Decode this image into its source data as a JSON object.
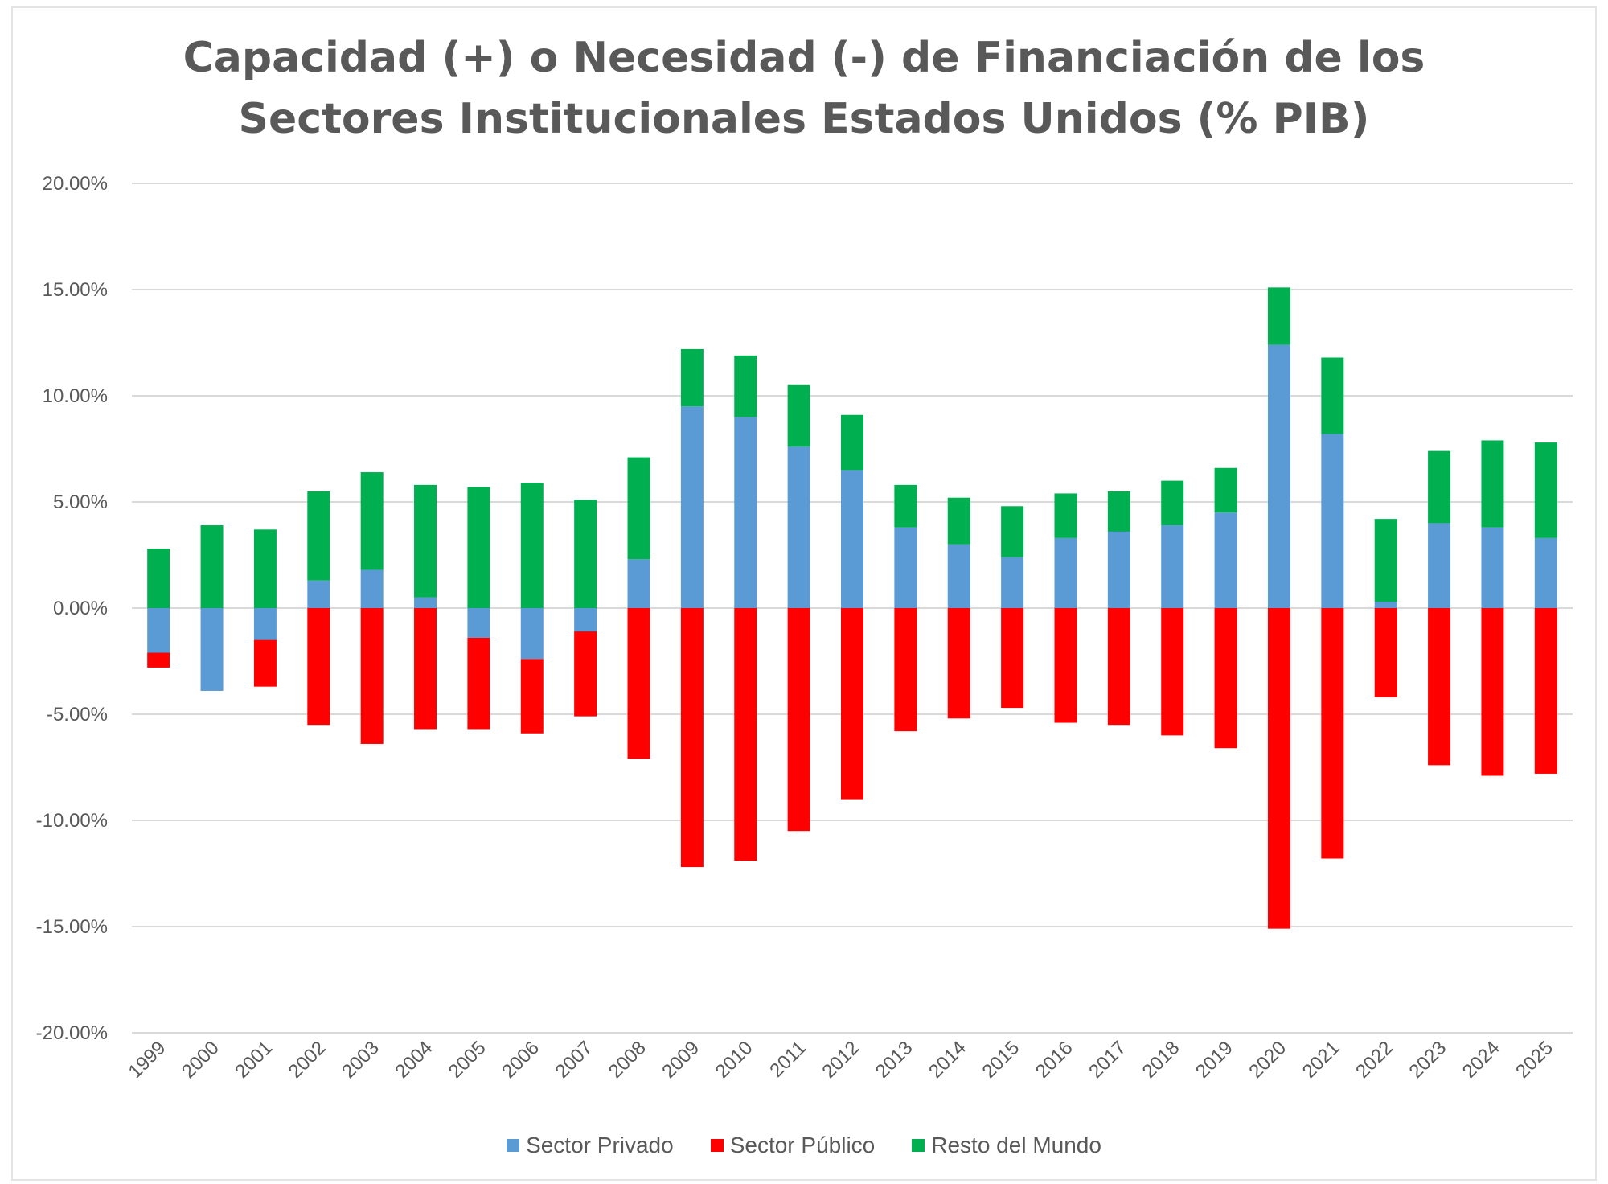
{
  "chart_data": {
    "type": "bar",
    "stacked": true,
    "title_lines": [
      "Capacidad (+) o Necesidad (-) de Financiación de los",
      "Sectores Institucionales Estados Unidos (% PIB)"
    ],
    "xlabel": "",
    "ylabel": "",
    "ylim": [
      -20,
      20
    ],
    "y_ticks": [
      20,
      15,
      10,
      5,
      0,
      -5,
      -10,
      -15,
      -20
    ],
    "y_tick_labels": [
      "20.00%",
      "15.00%",
      "10.00%",
      "5.00%",
      "0.00%",
      "-5.00%",
      "-10.00%",
      "-15.00%",
      "-20.00%"
    ],
    "grid": true,
    "legend_position": "bottom",
    "categories": [
      "1999",
      "2000",
      "2001",
      "2002",
      "2003",
      "2004",
      "2005",
      "2006",
      "2007",
      "2008",
      "2009",
      "2010",
      "2011",
      "2012",
      "2013",
      "2014",
      "2015",
      "2016",
      "2017",
      "2018",
      "2019",
      "2020",
      "2021",
      "2022",
      "2023",
      "2024",
      "2025"
    ],
    "series": [
      {
        "name": "Sector Privado",
        "color": "#5b9bd5",
        "values": [
          -2.1,
          -3.9,
          -1.5,
          1.3,
          1.8,
          0.5,
          -1.4,
          -2.4,
          -1.1,
          2.3,
          9.5,
          9.0,
          7.6,
          6.5,
          3.8,
          3.0,
          2.4,
          3.3,
          3.6,
          3.9,
          4.5,
          12.4,
          8.2,
          0.3,
          4.0,
          3.8,
          3.3
        ]
      },
      {
        "name": "Sector Público",
        "color": "#ff0000",
        "values": [
          -0.7,
          0.0,
          -2.2,
          -5.5,
          -6.4,
          -5.7,
          -4.3,
          -3.5,
          -4.0,
          -7.1,
          -12.2,
          -11.9,
          -10.5,
          -9.0,
          -5.8,
          -5.2,
          -4.7,
          -5.4,
          -5.5,
          -6.0,
          -6.6,
          -15.1,
          -11.8,
          -4.2,
          -7.4,
          -7.9,
          -7.8
        ]
      },
      {
        "name": "Resto del Mundo",
        "color": "#00b050",
        "values": [
          2.8,
          3.9,
          3.7,
          4.2,
          4.6,
          5.3,
          5.7,
          5.9,
          5.1,
          4.8,
          2.7,
          2.9,
          2.9,
          2.6,
          2.0,
          2.2,
          2.4,
          2.1,
          1.9,
          2.1,
          2.1,
          2.7,
          3.6,
          3.9,
          3.4,
          4.1,
          4.5
        ]
      }
    ]
  }
}
